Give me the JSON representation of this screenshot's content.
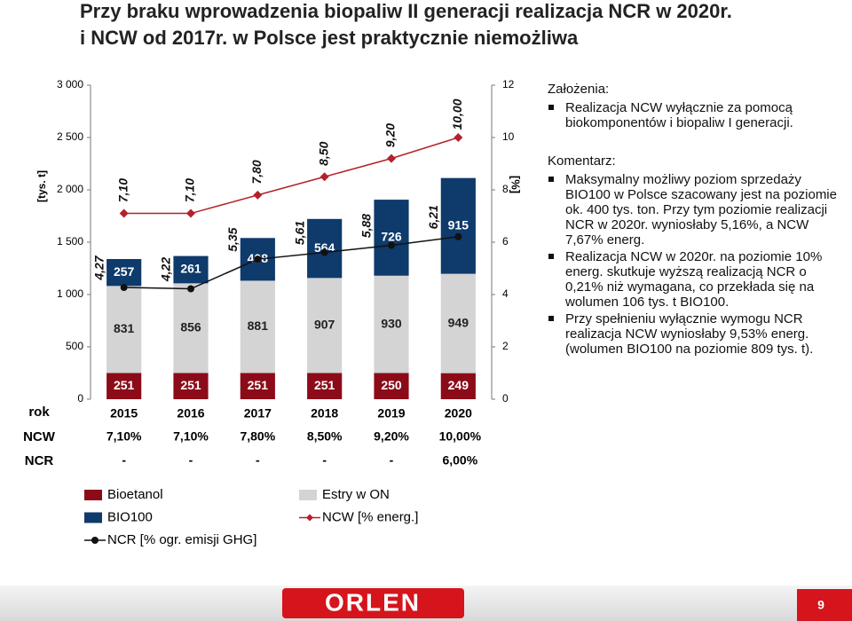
{
  "title": [
    "Przy braku wprowadzenia biopaliw II generacji realizacja NCR w 2020r.",
    "i NCW od 2017r. w Polsce jest praktycznie niemożliwa"
  ],
  "chart_data": {
    "type": "bar",
    "categories": [
      "2015",
      "2016",
      "2017",
      "2018",
      "2019",
      "2020"
    ],
    "ylabel": "[tys. t]",
    "y2label": "[%]",
    "ylim": [
      0,
      3000
    ],
    "yticks": [
      {
        "value": 0,
        "label": "0"
      },
      {
        "value": 500,
        "label": "500"
      },
      {
        "value": 1000,
        "label": "1 000"
      },
      {
        "value": 1500,
        "label": "1 500"
      },
      {
        "value": 2000,
        "label": "2 000"
      },
      {
        "value": 2500,
        "label": "2 500"
      },
      {
        "value": 3000,
        "label": "3 000"
      }
    ],
    "y2lim": [
      0,
      12
    ],
    "y2ticks": [
      0,
      2,
      4,
      6,
      8,
      10,
      12
    ],
    "series": [
      {
        "name": "Bioetanol",
        "type": "bar",
        "color": "#8c0b18",
        "values": [
          251,
          251,
          251,
          251,
          250,
          249
        ]
      },
      {
        "name": "Estry w ON",
        "type": "bar",
        "color": "#d4d4d4",
        "values": [
          831,
          856,
          881,
          907,
          930,
          949
        ]
      },
      {
        "name": "BIO100",
        "type": "bar",
        "color": "#0e3a6c",
        "values": [
          257,
          261,
          408,
          564,
          726,
          915
        ]
      },
      {
        "name": "NCW [% energ.]",
        "type": "line",
        "axis": "y2",
        "marker": "diamond",
        "color": "#b5202a",
        "values": [
          7.1,
          7.1,
          7.8,
          8.5,
          9.2,
          10.0
        ],
        "value_labels": [
          "7,10",
          "7,10",
          "7,80",
          "8,50",
          "9,20",
          "10,00"
        ]
      },
      {
        "name": "NCR [% ogr. emisji GHG]",
        "type": "line",
        "axis": "y2",
        "marker": "circle",
        "color": "#111111",
        "values": [
          4.27,
          4.22,
          5.35,
          5.61,
          5.88,
          6.21
        ],
        "value_labels": [
          "4,27",
          "4,22",
          "5,35",
          "5,61",
          "5,88",
          "6,21"
        ]
      }
    ],
    "table": {
      "row_labels": [
        "rok",
        "NCW",
        "NCR"
      ],
      "rows": [
        [
          "7,10%",
          "7,10%",
          "7,80%",
          "8,50%",
          "9,20%",
          "10,00%"
        ],
        [
          "-",
          "-",
          "-",
          "-",
          "-",
          "6,00%"
        ]
      ]
    }
  },
  "notes": [
    {
      "heading": "Założenia:",
      "bullets": [
        "Realizacja NCW wyłącznie za pomocą biokomponentów i biopaliw I generacji."
      ]
    },
    {
      "heading": "Komentarz:",
      "bullets": [
        "Maksymalny możliwy poziom sprzedaży BIO100 w Polsce szacowany jest na poziomie ok. 400 tys. ton. Przy tym poziomie realizacji NCR w 2020r. wyniosłaby 5,16%, a NCW 7,67% energ.",
        "Realizacja NCW w 2020r. na poziomie 10% energ. skutkuje wyższą realizacją NCR o 0,21% niż wymagana, co przekłada się na wolumen 106 tys. t BIO100.",
        "Przy spełnieniu wyłącznie wymogu NCR realizacja NCW wyniosłaby 9,53% energ. (wolumen BIO100 na poziomie 809 tys. t)."
      ]
    }
  ],
  "footer": {
    "logo": "ORLEN",
    "page": "9"
  }
}
